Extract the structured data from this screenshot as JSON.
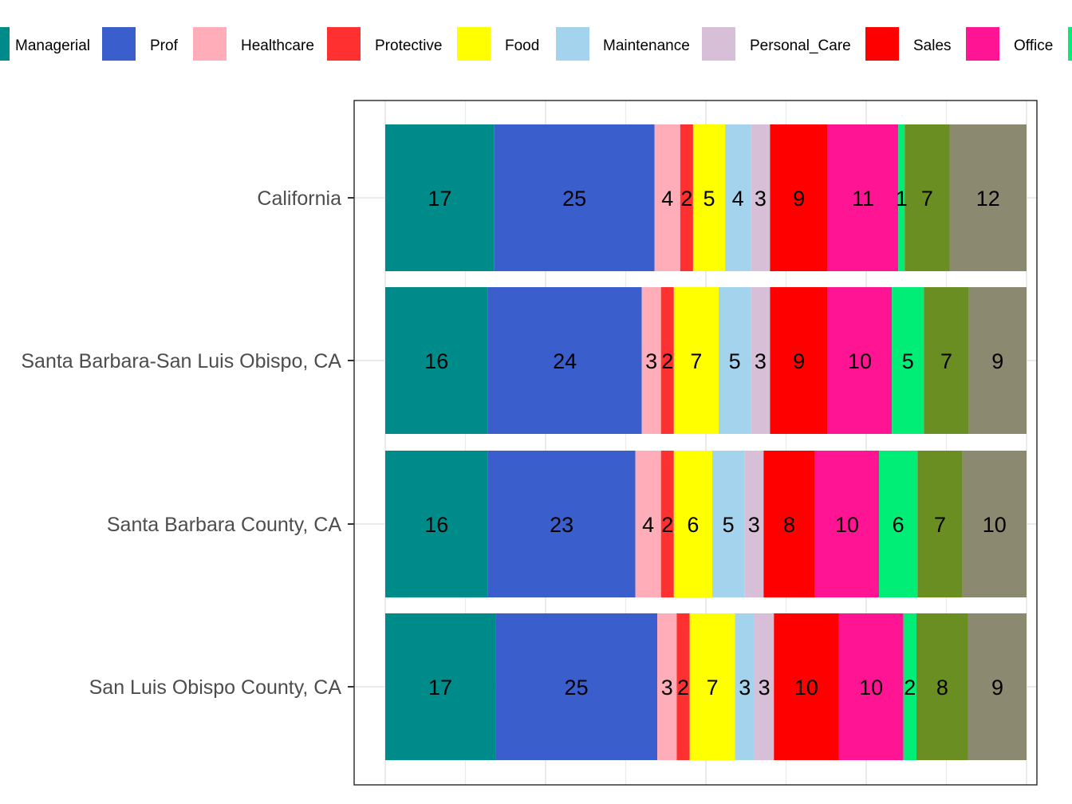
{
  "chart_data": {
    "type": "bar",
    "orientation": "horizontal",
    "stacked": true,
    "normalized": true,
    "legend_position": "top",
    "grid": true,
    "categories": [
      "California",
      "Santa Barbara-San Luis Obispo, CA",
      "Santa Barbara County, CA",
      "San Luis Obispo County, CA"
    ],
    "series": [
      {
        "name": "Managerial",
        "color": "#008B8B",
        "values": [
          17,
          16,
          16,
          17
        ],
        "show_in_legend": true
      },
      {
        "name": "Prof",
        "color": "#3A5FCD",
        "values": [
          25,
          24,
          23,
          25
        ],
        "show_in_legend": true
      },
      {
        "name": "Healthcare",
        "color": "#FFAEB9",
        "values": [
          4,
          3,
          4,
          3
        ],
        "show_in_legend": true
      },
      {
        "name": "Protective",
        "color": "#FF3030",
        "values": [
          2,
          2,
          2,
          2
        ],
        "show_in_legend": true
      },
      {
        "name": "Food",
        "color": "#FFFF00",
        "values": [
          5,
          7,
          6,
          7
        ],
        "show_in_legend": true
      },
      {
        "name": "Maintenance",
        "color": "#A4D3EE",
        "values": [
          4,
          5,
          5,
          3
        ],
        "show_in_legend": true
      },
      {
        "name": "Personal_Care",
        "color": "#D8BFD8",
        "values": [
          3,
          3,
          3,
          3
        ],
        "show_in_legend": true
      },
      {
        "name": "Sales",
        "color": "#FF0000",
        "values": [
          9,
          9,
          8,
          10
        ],
        "show_in_legend": true
      },
      {
        "name": "Office",
        "color": "#FF1493",
        "values": [
          11,
          10,
          10,
          10
        ],
        "show_in_legend": true
      },
      {
        "name": "",
        "color": "#00EE76",
        "values": [
          1,
          5,
          6,
          2
        ],
        "show_in_legend": true
      },
      {
        "name": "",
        "color": "#6B8E23",
        "values": [
          7,
          7,
          7,
          8
        ],
        "show_in_legend": false
      },
      {
        "name": "",
        "color": "#8B8970",
        "values": [
          12,
          9,
          10,
          9
        ],
        "show_in_legend": false
      }
    ]
  }
}
